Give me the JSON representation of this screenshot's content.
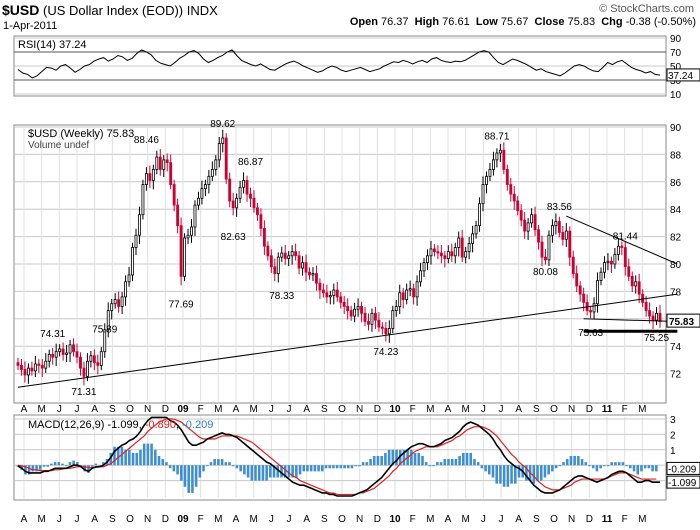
{
  "header": {
    "symbol": "$USD",
    "name": "(US Dollar Index (EOD))",
    "exchange": "INDX",
    "date": "1-Apr-2011",
    "watermark": "© StockCharts.com",
    "open_label": "Open",
    "open": "76.37",
    "high_label": "High",
    "high": "76.61",
    "low_label": "Low",
    "low": "75.67",
    "close_label": "Close",
    "close": "75.83",
    "chg_label": "Chg",
    "chg": "-0.38 (-0.50%)"
  },
  "colors": {
    "up": "#000000",
    "down": "#cc0033",
    "rsi_line": "#000000",
    "rsi_fill": "#4f8f3f",
    "macd_line": "#000000",
    "signal_line": "#e02020",
    "histogram": "#3f8fd0",
    "grid": "#c8c8c8"
  },
  "chart_data": [
    {
      "type": "line",
      "title": "RSI(14) 37.24",
      "ylim": [
        10,
        90
      ],
      "ticks": [
        10,
        30,
        50,
        70,
        90
      ],
      "overbought": 70,
      "oversold": 30,
      "last_label": "37.24",
      "values": [
        45,
        40,
        38,
        33,
        36,
        42,
        48,
        47,
        44,
        50,
        52,
        47,
        41,
        45,
        50,
        52,
        57,
        60,
        62,
        57,
        60,
        65,
        63,
        58,
        61,
        68,
        73,
        70,
        66,
        58,
        54,
        52,
        50,
        55,
        61,
        65,
        70,
        72,
        68,
        60,
        55,
        58,
        62,
        65,
        70,
        73,
        65,
        58,
        55,
        52,
        50,
        53,
        49,
        45,
        44,
        48,
        52,
        55,
        57,
        54,
        50,
        47,
        44,
        41,
        43,
        47,
        50,
        48,
        44,
        42,
        44,
        46,
        48,
        45,
        42,
        44,
        46,
        50,
        53,
        56,
        55,
        58,
        56,
        53,
        56,
        58,
        55,
        60,
        62,
        58,
        56,
        55,
        57,
        56,
        58,
        62,
        66,
        70,
        72,
        70,
        62,
        55,
        52,
        56,
        60,
        58,
        55,
        52,
        48,
        44,
        46,
        42,
        40,
        38,
        36,
        40,
        45,
        50,
        52,
        50,
        46,
        43,
        42,
        48,
        55,
        52,
        56,
        58,
        53,
        48,
        45,
        43,
        40,
        42,
        38,
        37
      ]
    },
    {
      "type": "candlestick",
      "title": "$USD (Weekly) 75.83",
      "volume_label": "Volume undef",
      "ylim": [
        70,
        90
      ],
      "ticks": [
        72,
        74,
        76,
        78,
        80,
        82,
        84,
        86,
        88,
        90
      ],
      "last_label": "75.83",
      "closes": [
        72.6,
        72.3,
        71.9,
        72.4,
        72.2,
        72.7,
        72.6,
        72.4,
        72.9,
        73.4,
        73.2,
        73.6,
        73.8,
        73.4,
        73.5,
        74.1,
        73.6,
        73.2,
        72.4,
        71.8,
        72.9,
        73.3,
        72.8,
        72.6,
        73.6,
        75.2,
        76.6,
        77.1,
        77.4,
        76.9,
        77.6,
        78.7,
        79.2,
        81.2,
        82.1,
        83.6,
        85.8,
        86.6,
        86.1,
        86.9,
        87.8,
        86.9,
        87.6,
        87.4,
        85.8,
        84.3,
        82.8,
        79.1,
        81.9,
        82.1,
        82.7,
        84.3,
        84.8,
        85.5,
        85.8,
        86.4,
        86.9,
        87.6,
        88.8,
        89.2,
        86.2,
        84.6,
        84.1,
        84.8,
        85.6,
        86.1,
        85.1,
        84.8,
        84.1,
        83.6,
        82.6,
        81.3,
        80.6,
        79.8,
        79.3,
        80.5,
        80.8,
        80.4,
        80.6,
        80.9,
        80.6,
        79.7,
        80.1,
        79.4,
        79.2,
        79.3,
        78.6,
        78.1,
        77.9,
        77.6,
        77.7,
        78.1,
        77.6,
        77.2,
        76.9,
        76.6,
        76.2,
        76.7,
        76.9,
        76.4,
        75.8,
        75.6,
        76.4,
        75.9,
        75.4,
        75.3,
        74.9,
        75.3,
        76.6,
        76.9,
        77.9,
        77.4,
        78.1,
        78.2,
        77.6,
        78.7,
        79.5,
        80.1,
        80.6,
        81.1,
        80.9,
        80.8,
        80.6,
        80.4,
        80.9,
        80.6,
        81.2,
        81.9,
        80.5,
        80.9,
        81.5,
        82.2,
        82.8,
        84.4,
        85.8,
        86.4,
        86.9,
        87.6,
        88.1,
        88.3,
        86.9,
        85.8,
        85.1,
        84.6,
        83.9,
        83.2,
        82.4,
        83.0,
        83.6,
        82.5,
        81.6,
        80.5,
        80.3,
        82.1,
        82.8,
        83.1,
        82.3,
        81.8,
        82.4,
        80.5,
        79.3,
        78.4,
        77.8,
        77.2,
        76.6,
        76.5,
        77.1,
        78.8,
        79.4,
        80.1,
        80.2,
        80.0,
        80.7,
        81.3,
        81.2,
        79.8,
        79.1,
        78.4,
        78.7,
        77.8,
        77.2,
        76.6,
        76.2,
        75.9,
        76.4,
        75.8
      ]
    },
    {
      "type": "line",
      "title": "MACD(12,26,9) -1.099, -0.890, -0.209",
      "series": [
        {
          "name": "MACD(12,26,9)",
          "values": [
            -0.05,
            -0.2,
            -0.4,
            -0.5,
            -0.5,
            -0.5,
            -0.5,
            -0.4,
            -0.4,
            -0.3,
            -0.2,
            -0.2,
            -0.2,
            -0.2,
            -0.1,
            0,
            0,
            -0.1,
            -0.3,
            -0.4,
            -0.2,
            -0.1,
            -0.1,
            0,
            0.2,
            0.5,
            0.9,
            1.1,
            1.3,
            1.4,
            1.6,
            1.7,
            1.9,
            2.2,
            2.6,
            2.9,
            3.1,
            3.1,
            3.1,
            3.1,
            3.1,
            2.9,
            2.8,
            2.6,
            2.3,
            1.9,
            1.5,
            1.3,
            1.3,
            1.4,
            1.5,
            1.7,
            1.8,
            1.9,
            2.0,
            2.1,
            2.0,
            2.0,
            1.9,
            1.8,
            1.6,
            1.4,
            1.2,
            1.0,
            0.8,
            0.6,
            0.4,
            0.2,
            0.1,
            -0.1,
            -0.3,
            -0.5,
            -0.7,
            -0.9,
            -1.1,
            -1.2,
            -1.3,
            -1.3,
            -1.4,
            -1.5,
            -1.6,
            -1.7,
            -1.8,
            -1.8,
            -1.9,
            -1.9,
            -2.0,
            -2.0,
            -2.0,
            -2.0,
            -2.0,
            -1.9,
            -1.8,
            -1.7,
            -1.6,
            -1.4,
            -1.2,
            -1.0,
            -0.8,
            -0.5,
            -0.2,
            0.1,
            0.3,
            0.6,
            0.8,
            1.0,
            1.2,
            1.3,
            1.4,
            1.4,
            1.3,
            1.2,
            1.2,
            1.3,
            1.4,
            1.6,
            1.7,
            1.8,
            2.0,
            2.2,
            2.5,
            2.7,
            2.8,
            2.7,
            2.6,
            2.4,
            2.2,
            2.0,
            1.7,
            1.3,
            1.0,
            0.6,
            0.3,
            0.1,
            -0.1,
            -0.2,
            -0.4,
            -0.7,
            -1.0,
            -1.3,
            -1.5,
            -1.7,
            -1.8,
            -1.8,
            -1.8,
            -1.7,
            -1.6,
            -1.4,
            -1.2,
            -1.0,
            -0.8,
            -0.7,
            -0.7,
            -0.8,
            -0.9,
            -1.0,
            -1.1,
            -1.0,
            -0.9,
            -0.8,
            -0.6,
            -0.5,
            -0.4,
            -0.4,
            -0.5,
            -0.7,
            -0.9,
            -1.1,
            -1.1,
            -1.0,
            -1.0,
            -1.1,
            -1.1,
            -1.1
          ]
        },
        {
          "name": "signal",
          "values": [
            0,
            -0.05,
            -0.1,
            -0.2,
            -0.3,
            -0.3,
            -0.35,
            -0.35,
            -0.35,
            -0.35,
            -0.3,
            -0.3,
            -0.25,
            -0.2,
            -0.2,
            -0.15,
            -0.1,
            -0.1,
            -0.1,
            -0.15,
            -0.15,
            -0.15,
            -0.1,
            -0.1,
            0,
            0.1,
            0.3,
            0.5,
            0.7,
            0.9,
            1.1,
            1.3,
            1.5,
            1.7,
            1.9,
            2.2,
            2.4,
            2.6,
            2.8,
            2.9,
            3.0,
            3.0,
            3.0,
            2.9,
            2.8,
            2.6,
            2.4,
            2.2,
            2.0,
            1.8,
            1.7,
            1.7,
            1.7,
            1.7,
            1.8,
            1.9,
            1.9,
            1.9,
            1.9,
            1.9,
            1.8,
            1.7,
            1.6,
            1.5,
            1.3,
            1.1,
            0.9,
            0.7,
            0.5,
            0.3,
            0.1,
            -0.1,
            -0.3,
            -0.5,
            -0.7,
            -0.8,
            -1.0,
            -1.1,
            -1.2,
            -1.3,
            -1.4,
            -1.5,
            -1.6,
            -1.7,
            -1.8,
            -1.8,
            -1.9,
            -1.9,
            -1.9,
            -1.9,
            -1.9,
            -1.9,
            -1.8,
            -1.8,
            -1.7,
            -1.6,
            -1.5,
            -1.3,
            -1.1,
            -0.9,
            -0.7,
            -0.4,
            -0.2,
            0.1,
            0.3,
            0.5,
            0.7,
            0.9,
            1.0,
            1.1,
            1.2,
            1.2,
            1.2,
            1.2,
            1.3,
            1.4,
            1.5,
            1.6,
            1.8,
            1.9,
            2.1,
            2.3,
            2.4,
            2.5,
            2.5,
            2.5,
            2.4,
            2.3,
            2.1,
            1.9,
            1.6,
            1.3,
            1.0,
            0.7,
            0.5,
            0.2,
            0,
            -0.2,
            -0.5,
            -0.7,
            -1.0,
            -1.2,
            -1.4,
            -1.5,
            -1.6,
            -1.6,
            -1.6,
            -1.5,
            -1.4,
            -1.3,
            -1.1,
            -1.0,
            -0.9,
            -0.9,
            -0.9,
            -0.9,
            -0.9,
            -0.9,
            -0.9,
            -0.8,
            -0.7,
            -0.6,
            -0.5,
            -0.5,
            -0.5,
            -0.6,
            -0.7,
            -0.8,
            -0.9,
            -0.9,
            -0.9,
            -0.9,
            -0.9
          ]
        }
      ],
      "ylim": [
        -2,
        3
      ],
      "ticks": [
        -1,
        0,
        1,
        2,
        3
      ],
      "last_labels": [
        "-0.209",
        "-1.099"
      ]
    }
  ],
  "title_parts": {
    "rsi_prefix": "RSI(14) ",
    "rsi_val": "37.24",
    "price_prefix": "$USD (Weekly) ",
    "price_val": "75.83",
    "macd_prefix": "MACD(12,26,9) ",
    "macd_v1": "-1.099",
    "macd_v2": "-0.890",
    "macd_v3": "-0.209"
  },
  "x_axis": {
    "labels": [
      "A",
      "M",
      "J",
      "J",
      "A",
      "S",
      "O",
      "N",
      "D",
      "09",
      "F",
      "M",
      "A",
      "M",
      "J",
      "J",
      "A",
      "S",
      "O",
      "N",
      "D",
      "10",
      "F",
      "M",
      "A",
      "M",
      "J",
      "J",
      "A",
      "S",
      "O",
      "N",
      "D",
      "11",
      "F",
      "M"
    ]
  },
  "annotations": {
    "peaks": [
      {
        "text": "74.31",
        "i": 10,
        "val": 74.31,
        "pos": "above"
      },
      {
        "text": "71.31",
        "i": 19,
        "val": 71.31,
        "pos": "below"
      },
      {
        "text": "75.89",
        "i": 25,
        "val": 75.89,
        "pos": "below"
      },
      {
        "text": "88.46",
        "i": 37,
        "val": 88.46,
        "pos": "above"
      },
      {
        "text": "77.69",
        "i": 47,
        "val": 77.69,
        "pos": "below"
      },
      {
        "text": "89.62",
        "i": 59,
        "val": 89.62,
        "pos": "above"
      },
      {
        "text": "82.63",
        "i": 62,
        "val": 82.63,
        "pos": "below"
      },
      {
        "text": "86.87",
        "i": 67,
        "val": 86.87,
        "pos": "above"
      },
      {
        "text": "78.33",
        "i": 76,
        "val": 78.33,
        "pos": "below"
      },
      {
        "text": "74.23",
        "i": 106,
        "val": 74.23,
        "pos": "below"
      },
      {
        "text": "88.71",
        "i": 138,
        "val": 88.71,
        "pos": "above"
      },
      {
        "text": "80.08",
        "i": 152,
        "val": 80.08,
        "pos": "below"
      },
      {
        "text": "83.56",
        "i": 156,
        "val": 83.56,
        "pos": "above"
      },
      {
        "text": "75.63",
        "i": 165,
        "val": 75.63,
        "pos": "below"
      },
      {
        "text": "81.44",
        "i": 175,
        "val": 81.44,
        "pos": "above"
      },
      {
        "text": "75.25",
        "i": 184,
        "val": 75.25,
        "pos": "below"
      }
    ],
    "trendlines": [
      {
        "i0": 0,
        "v0": 71.0,
        "i1": 190,
        "v1": 77.8
      },
      {
        "i0": 158,
        "v0": 83.5,
        "i1": 190,
        "v1": 80.0
      },
      {
        "i0": 163,
        "v0": 76.0,
        "i1": 190,
        "v1": 75.8
      }
    ]
  }
}
